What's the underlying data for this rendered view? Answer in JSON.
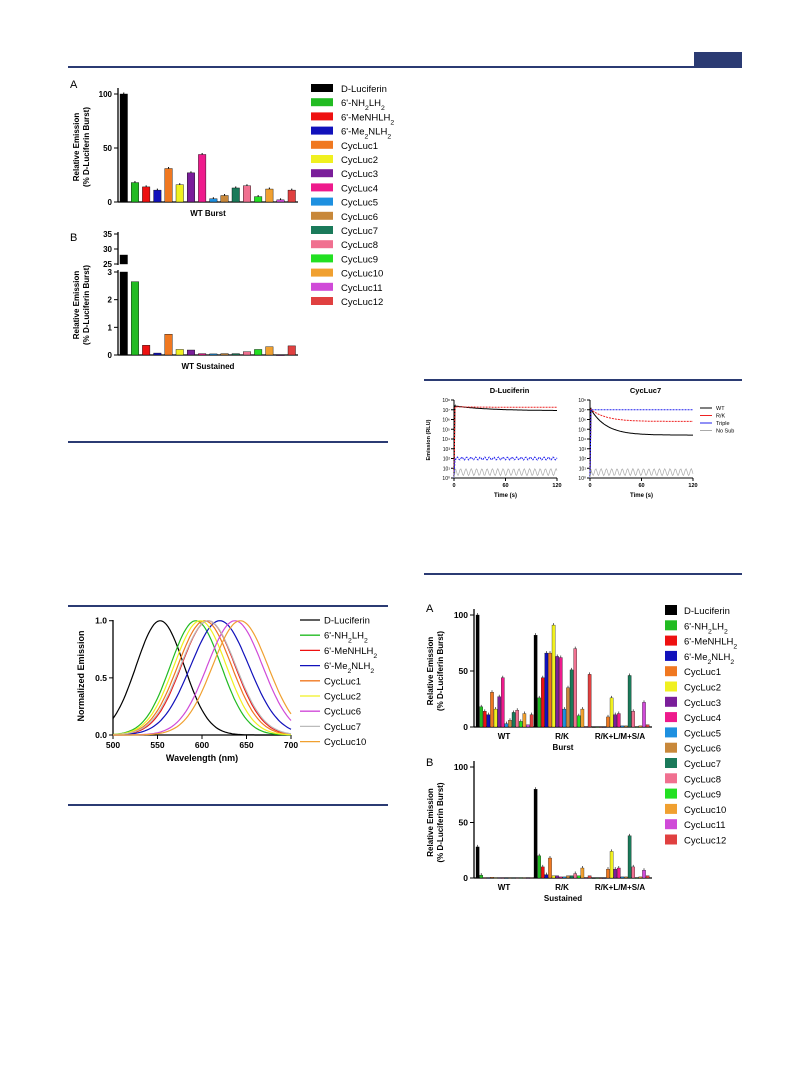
{
  "colors": {
    "rule": "#2b3b73",
    "series": [
      "#000000",
      "#22bb22",
      "#ee1111",
      "#1111bb",
      "#f07820",
      "#f0f020",
      "#7a1e9a",
      "#ee1a8c",
      "#1e90e0",
      "#c8883a",
      "#1a7a5a",
      "#f07090",
      "#22e022",
      "#f0a030",
      "#d04ad8",
      "#e04040"
    ]
  },
  "legend_main": {
    "items": [
      "D-Luciferin",
      "6'-NH2LH2",
      "6'-MeNHLH2",
      "6'-Me2NLH2",
      "CycLuc1",
      "CycLuc2",
      "CycLuc3",
      "CycLuc4",
      "CycLuc5",
      "CycLuc6",
      "CycLuc7",
      "CycLuc8",
      "CycLuc9",
      "CycLuc10",
      "CycLuc11",
      "CycLuc12"
    ]
  },
  "chart_data": [
    {
      "id": "fig1A",
      "type": "bar",
      "panel_label": "A",
      "ylabel": [
        "Relative Emission",
        "(% D-Luciferin Burst)"
      ],
      "xlabel": "WT Burst",
      "yticks": [
        "0",
        "50",
        "100"
      ],
      "ylim": [
        0,
        105
      ],
      "categories": [
        "D-Luciferin",
        "6'-NH2LH2",
        "6'-MeNHLH2",
        "6'-Me2NLH2",
        "CycLuc1",
        "CycLuc2",
        "CycLuc3",
        "CycLuc4",
        "CycLuc5",
        "CycLuc6",
        "CycLuc7",
        "CycLuc8",
        "CycLuc9",
        "CycLuc10",
        "CycLuc11",
        "CycLuc12"
      ],
      "values": [
        100,
        18,
        14,
        11,
        31,
        16,
        27,
        44,
        3,
        6,
        13,
        15,
        5,
        12,
        2,
        11
      ]
    },
    {
      "id": "fig1B",
      "type": "bar",
      "panel_label": "B",
      "ylabel": [
        "Relative Emission",
        "(% D-Luciferin Burst)"
      ],
      "xlabel": "WT Sustained",
      "yticks_low": [
        "0",
        "1",
        "2",
        "3"
      ],
      "yticks_high": [
        "25",
        "30",
        "35"
      ],
      "ylim_low": [
        0,
        3
      ],
      "ylim_high": [
        25,
        35
      ],
      "categories": [
        "D-Luciferin",
        "6'-NH2LH2",
        "6'-MeNHLH2",
        "6'-Me2NLH2",
        "CycLuc1",
        "CycLuc2",
        "CycLuc3",
        "CycLuc4",
        "CycLuc5",
        "CycLuc6",
        "CycLuc7",
        "CycLuc8",
        "CycLuc9",
        "CycLuc10",
        "CycLuc11",
        "CycLuc12"
      ],
      "values": [
        28,
        2.65,
        0.35,
        0.07,
        0.75,
        0.2,
        0.18,
        0.05,
        0.04,
        0.05,
        0.05,
        0.12,
        0.2,
        0.3,
        0.0,
        0.33
      ]
    },
    {
      "id": "spectra",
      "type": "line",
      "xlabel": "Wavelength (nm)",
      "ylabel": "Normalized Emission",
      "xticks": [
        "500",
        "550",
        "600",
        "650",
        "700"
      ],
      "yticks": [
        "0.0",
        "0.5",
        "1.0"
      ],
      "xlim": [
        500,
        700
      ],
      "ylim": [
        0,
        1.05
      ],
      "series": [
        {
          "name": "D-Luciferin",
          "peak": 553,
          "width": 33,
          "color": "#000000"
        },
        {
          "name": "6'-NH2LH2",
          "peak": 593,
          "width": 35,
          "color": "#22bb22"
        },
        {
          "name": "6'-MeNHLH2",
          "peak": 607,
          "width": 37,
          "color": "#ee1111"
        },
        {
          "name": "6'-Me2NLH2",
          "peak": 620,
          "width": 40,
          "color": "#1111bb"
        },
        {
          "name": "CycLuc1",
          "peak": 603,
          "width": 37,
          "color": "#f07820"
        },
        {
          "name": "CycLuc2",
          "peak": 598,
          "width": 36,
          "color": "#f0f020"
        },
        {
          "name": "CycLuc6",
          "peak": 637,
          "width": 38,
          "color": "#d04ad8"
        },
        {
          "name": "CycLuc7",
          "peak": 607,
          "width": 38,
          "color": "#bbbbbb"
        },
        {
          "name": "CycLuc10",
          "peak": 643,
          "width": 38,
          "color": "#f0a030"
        }
      ],
      "legend": [
        "D-Luciferin",
        "6'-NH2LH2",
        "6'-MeNHLH2",
        "6'-Me2NLH2",
        "CycLuc1",
        "CycLuc2",
        "CycLuc6",
        "CycLuc7",
        "CycLuc10"
      ]
    },
    {
      "id": "kinetics",
      "type": "line",
      "titles": [
        "D-Luciferin",
        "CycLuc7"
      ],
      "ylabel": "Emission (RLU)",
      "xlabel": "Time (s)",
      "xticks": [
        "0",
        "60",
        "120"
      ],
      "yticks": [
        "10⁸",
        "10⁷",
        "10⁶",
        "10⁵",
        "10⁴",
        "10³",
        "10²",
        "10¹",
        "10⁰"
      ],
      "ylog_range": [
        0,
        8
      ],
      "series": [
        {
          "name": "WT",
          "color": "#000000",
          "dluc": [
            7.4,
            6.9
          ],
          "cyc": [
            7.2,
            4.4
          ]
        },
        {
          "name": "R/K",
          "color": "#ee2222",
          "dluc": [
            7.3,
            7.25
          ],
          "cyc": [
            7.1,
            5.8
          ]
        },
        {
          "name": "Triple",
          "color": "#2222ee",
          "dluc": [
            2.0,
            2.0
          ],
          "cyc": [
            7.0,
            7.0
          ]
        },
        {
          "name": "No Sub",
          "color": "#aaaaaa",
          "dluc": [
            0.6,
            0.6
          ],
          "cyc": [
            0.6,
            0.6
          ]
        }
      ]
    },
    {
      "id": "fig2A",
      "type": "bar",
      "panel_label": "A",
      "ylabel": [
        "Relative Emission",
        "(% D-Luciferin Burst)"
      ],
      "xlabel": "Burst",
      "yticks": [
        "0",
        "50",
        "100"
      ],
      "ylim": [
        0,
        105
      ],
      "groups": [
        "WT",
        "R/K",
        "R/K+L/M+S/A"
      ],
      "values": [
        [
          100,
          18,
          14,
          11,
          31,
          16,
          27,
          44,
          3,
          6,
          13,
          15,
          5,
          12,
          2,
          11
        ],
        [
          82,
          26,
          44,
          66,
          66,
          91,
          63,
          62,
          16,
          35,
          51,
          70,
          10,
          16,
          0,
          47
        ],
        [
          0,
          0,
          0,
          0,
          9,
          26,
          11,
          12,
          1,
          1,
          46,
          14,
          0,
          1,
          22,
          2
        ]
      ]
    },
    {
      "id": "fig2B",
      "type": "bar",
      "panel_label": "B",
      "ylabel": [
        "Relative Emission",
        "(% D-Luciferin Burst)"
      ],
      "xlabel": "Sustained",
      "yticks": [
        "0",
        "50",
        "100"
      ],
      "ylim": [
        0,
        105
      ],
      "groups": [
        "WT",
        "R/K",
        "R/K+L/M+S/A"
      ],
      "values": [
        [
          28,
          2.6,
          0.3,
          0.1,
          0.7,
          0.2,
          0.2,
          0.1,
          0.0,
          0.1,
          0.1,
          0.1,
          0.2,
          0.3,
          0.0,
          0.3
        ],
        [
          80,
          20,
          10,
          3,
          18,
          2,
          2,
          1,
          1,
          2,
          2,
          4,
          2,
          9,
          0,
          2
        ],
        [
          0,
          0,
          0,
          0,
          8,
          24,
          8,
          9,
          1,
          1,
          38,
          10,
          0,
          1,
          7,
          2
        ]
      ]
    }
  ]
}
